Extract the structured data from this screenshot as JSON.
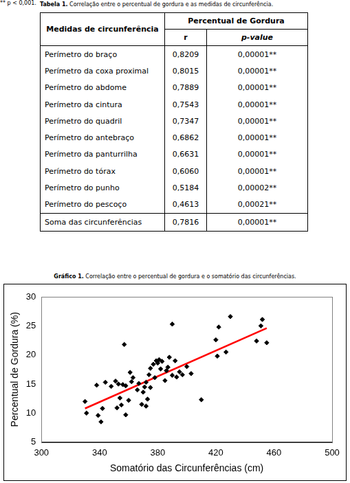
{
  "table_caption": {
    "label": "Tabela 1.",
    "text": "Correlação entre o percentual de gordura e as medidas de circunferência."
  },
  "table": {
    "header": {
      "first": "Medidas de circunferência",
      "group": "Percentual de Gordura",
      "sub": [
        "r",
        "p-value"
      ]
    },
    "rows": [
      [
        "Perímetro do braço",
        "0,8209",
        "0,00001**"
      ],
      [
        "Perímetro da coxa proximal",
        "0,8015",
        "0,00001**"
      ],
      [
        "Perímetro do abdome",
        "0,7889",
        "0,00001**"
      ],
      [
        "Perímetro da cintura",
        "0,7543",
        "0,00001**"
      ],
      [
        "Perímetro do quadril",
        "0,7347",
        "0,00001**"
      ],
      [
        "Perímetro do antebraço",
        "0,6862",
        "0,00001**"
      ],
      [
        "Perímetro da panturrilha",
        "0,6631",
        "0,00001**"
      ],
      [
        "Perímetro do tórax",
        "0,6060",
        "0,00001**"
      ],
      [
        "Perímetro do punho",
        "0,5184",
        "0,00002**"
      ],
      [
        "Perímetro do pescoço",
        "0,4613",
        "0,00021**"
      ]
    ],
    "total_row": [
      "Soma das circunferências",
      "0,7816",
      "0,00001**"
    ]
  },
  "footnote": "** p < 0,001.",
  "chart_caption": {
    "label": "Gráfico 1.",
    "text": "Correlação entre o percentual de gordura e o somatório das circunferências."
  },
  "chart_data": {
    "type": "scatter",
    "x_label": "Somatório das Circunferências (cm)",
    "y_label": "Percentual de Gordura (%)",
    "series": [
      {
        "type": "scatter",
        "color": "#000000",
        "marker": "diamond",
        "x": [
          330,
          331,
          338,
          339,
          341,
          342,
          344,
          348,
          351,
          352,
          353,
          354,
          355,
          356,
          357,
          358,
          358,
          360,
          361,
          362,
          363,
          366,
          367,
          369,
          370,
          371,
          372,
          372,
          373,
          374,
          375,
          375,
          377,
          378,
          379,
          380,
          381,
          382,
          383,
          385,
          386,
          387,
          388,
          390,
          390,
          392,
          393,
          395,
          397,
          400,
          403,
          410,
          420,
          421,
          422,
          427,
          430,
          448,
          451,
          452,
          455
        ],
        "values": [
          12.0,
          10.0,
          14.8,
          9.6,
          8.5,
          10.8,
          15.3,
          14.6,
          15.5,
          10.9,
          15.0,
          12.6,
          11.4,
          14.9,
          21.8,
          14.7,
          9.7,
          12.2,
          17.0,
          15.4,
          16.1,
          14.0,
          15.1,
          11.5,
          13.6,
          14.5,
          15.3,
          11.2,
          12.4,
          16.6,
          14.4,
          17.7,
          18.4,
          16.1,
          19.0,
          18.6,
          19.2,
          17.6,
          18.9,
          15.6,
          17.3,
          17.9,
          19.6,
          16.5,
          25.3,
          19.0,
          16.2,
          17.1,
          16.6,
          18.0,
          16.8,
          12.3,
          22.6,
          19.8,
          24.8,
          20.5,
          26.6,
          22.4,
          25.0,
          26.1,
          22.1
        ]
      },
      {
        "type": "line",
        "color": "#ff0000",
        "line_style": "solid",
        "x": [
          330,
          455
        ],
        "values": [
          10.8,
          24.6
        ]
      }
    ],
    "xlim": [
      300,
      500
    ],
    "xticks": [
      300,
      340,
      380,
      420,
      460,
      500
    ],
    "ylim": [
      5,
      30
    ],
    "yticks": [
      5,
      10,
      15,
      20,
      25,
      30
    ],
    "grid": false
  }
}
